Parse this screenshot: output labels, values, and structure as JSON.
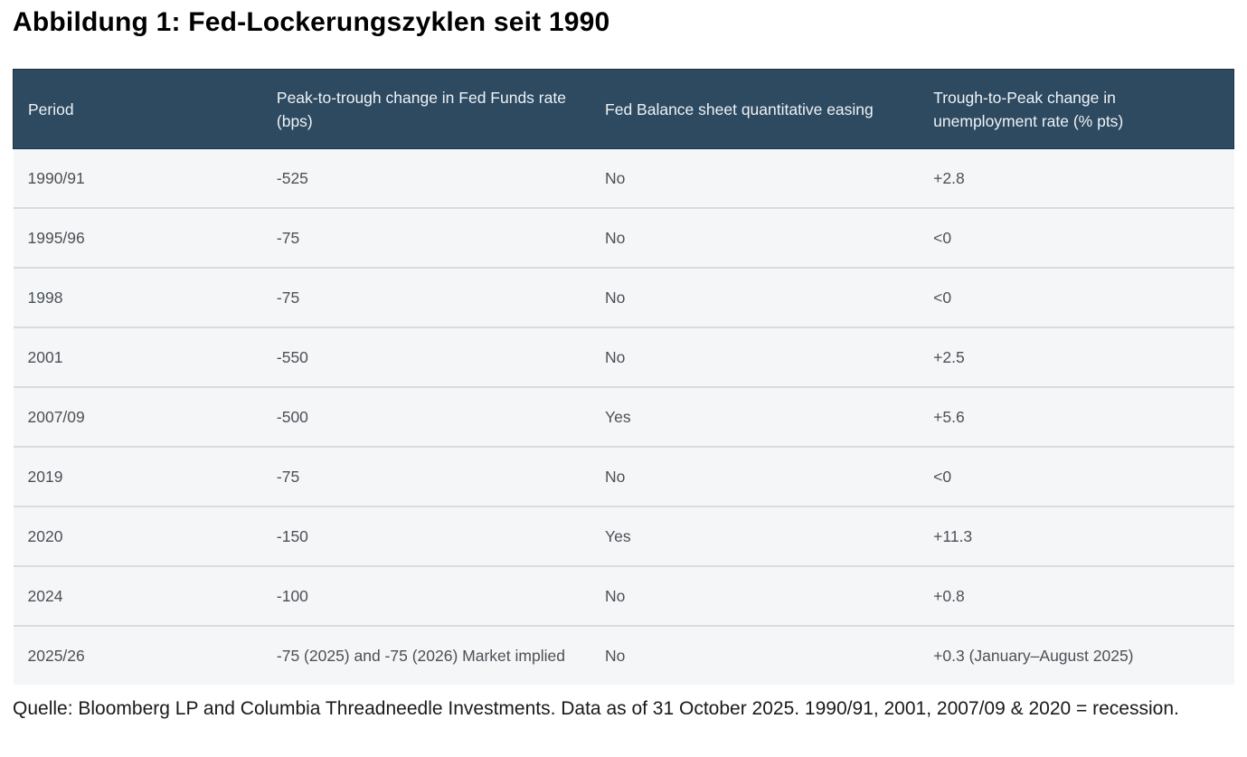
{
  "colors": {
    "header_bg": "#2d4a61",
    "header_border": "#1e3447",
    "header_text": "#eef2f5",
    "row_bg": "#f4f6f8",
    "row_separator": "#d9dce0",
    "body_text": "#4c5156"
  },
  "chart_data": {
    "type": "table",
    "title": "Abbildung 1: Fed-Lockerungszyklen seit 1990",
    "columns": [
      "Period",
      "Peak-to-trough change in Fed Funds rate (bps)",
      "Fed Balance sheet quantitative easing",
      "Trough-to-Peak change in unemployment rate (% pts)"
    ],
    "rows": [
      [
        "1990/91",
        "-525",
        "No",
        "+2.8"
      ],
      [
        "1995/96",
        "-75",
        "No",
        "<0"
      ],
      [
        "1998",
        "-75",
        "No",
        "<0"
      ],
      [
        "2001",
        "-550",
        "No",
        "+2.5"
      ],
      [
        "2007/09",
        "-500",
        "Yes",
        "+5.6"
      ],
      [
        "2019",
        "-75",
        "No",
        "<0"
      ],
      [
        "2020",
        "-150",
        "Yes",
        "+11.3"
      ],
      [
        "2024",
        "-100",
        "No",
        "+0.8"
      ],
      [
        "2025/26",
        "-75 (2025) and -75 (2026) Market implied",
        "No",
        "+0.3 (January–August 2025)"
      ]
    ],
    "source": "Quelle: Bloomberg LP and Columbia Threadneedle Investments. Data as of 31 October 2025. 1990/91, 2001, 2007/09 & 2020 = recession."
  }
}
